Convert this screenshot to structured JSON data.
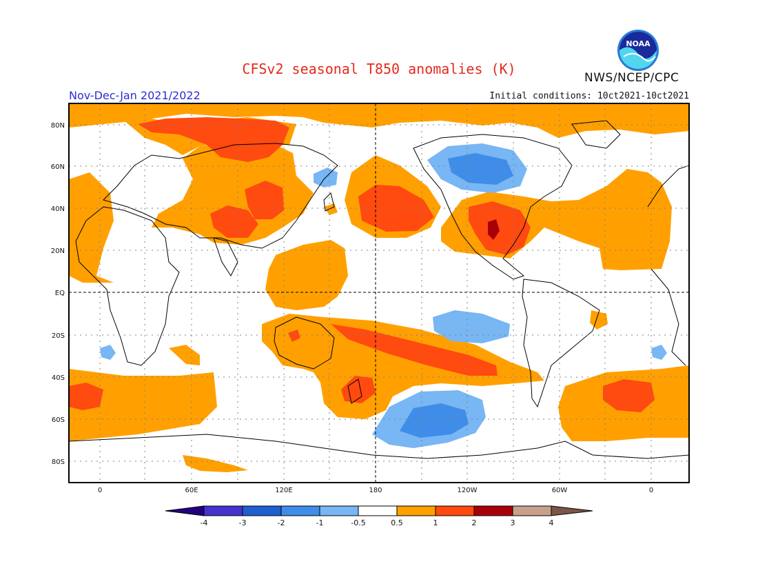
{
  "header": {
    "title": "CFSv2 seasonal T850 anomalies (K)",
    "organization": "NWS/NCEP/CPC",
    "period": "Nov-Dec-Jan 2021/2022",
    "initial_conditions": "Initial conditions: 10ct2021-10ct2021",
    "logo_text": "NOAA"
  },
  "map": {
    "lat_labels": [
      "80N",
      "60N",
      "40N",
      "20N",
      "EQ",
      "20S",
      "40S",
      "60S",
      "80S"
    ],
    "lon_labels": [
      "0",
      "60E",
      "120E",
      "180",
      "120W",
      "60W",
      "0"
    ]
  },
  "colorbar": {
    "tick_labels": [
      "-4",
      "-3",
      "-2",
      "-1",
      "-0.5",
      "0.5",
      "1",
      "2",
      "3",
      "4"
    ],
    "colors": {
      "below_-4": "#220080",
      "-4_-3": "#4433cc",
      "-3_-2": "#1f5fd0",
      "-2_-1": "#3f8de8",
      "-1_-0.5": "#78b6f4",
      "-0.5_0.5": "#ffffff",
      "0.5_1": "#ffa000",
      "1_2": "#ff4a10",
      "2_3": "#a80008",
      "3_4": "#c8a08c",
      "above_4": "#7a5548"
    }
  }
}
